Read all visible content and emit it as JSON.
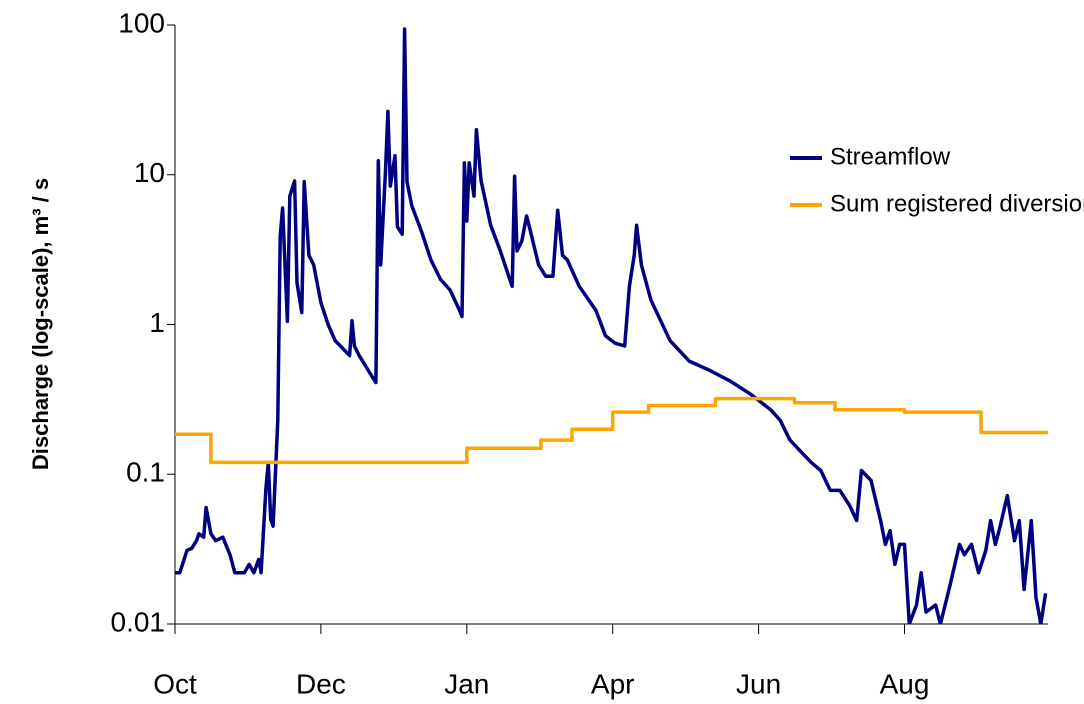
{
  "chart_data": {
    "type": "line",
    "ylabel": "Discharge (log-scale), m³ / s",
    "ylog": true,
    "ylim": [
      0.01,
      100
    ],
    "yticks": [
      0.01,
      0.1,
      1,
      10,
      100
    ],
    "xlim": [
      0,
      365
    ],
    "xticks": [
      {
        "value": 0,
        "label": "Oct"
      },
      {
        "value": 61,
        "label": "Dec"
      },
      {
        "value": 122,
        "label": "Jan"
      },
      {
        "value": 183,
        "label": "Apr"
      },
      {
        "value": 244,
        "label": "Jun"
      },
      {
        "value": 305,
        "label": "Aug"
      }
    ],
    "legend": "upper right",
    "series": [
      {
        "name": "Streamflow",
        "color": "#000080",
        "x": [
          0,
          2,
          5,
          7,
          9,
          10,
          12,
          13,
          15,
          17,
          20,
          23,
          25,
          29,
          31,
          33,
          35,
          36,
          38,
          39,
          40,
          41,
          43,
          44,
          45,
          47,
          48,
          50,
          51,
          53,
          54,
          56,
          58,
          61,
          64,
          67,
          71,
          73,
          74,
          75,
          77,
          82,
          84,
          85,
          86,
          88,
          89,
          90,
          92,
          93,
          95,
          96,
          97,
          99,
          103,
          107,
          111,
          115,
          119,
          120,
          121,
          122,
          123,
          125,
          126,
          128,
          132,
          136,
          140,
          141,
          142,
          143,
          145,
          147,
          148,
          152,
          155,
          158,
          160,
          162,
          164,
          169,
          176,
          180,
          184,
          188,
          190,
          192,
          193,
          195,
          199,
          207,
          215,
          224,
          232,
          241,
          249,
          253,
          257,
          262,
          266,
          270,
          274,
          278,
          282,
          285,
          287,
          291,
          295,
          297,
          299,
          301,
          303,
          305,
          307,
          310,
          312,
          314,
          318,
          320,
          324,
          328,
          330,
          333,
          336,
          339,
          341,
          343,
          345,
          348,
          351,
          353,
          355,
          358,
          360,
          362,
          364
        ],
        "values": [
          0.022,
          0.022,
          0.031,
          0.032,
          0.036,
          0.04,
          0.038,
          0.06,
          0.04,
          0.036,
          0.038,
          0.029,
          0.022,
          0.022,
          0.025,
          0.022,
          0.027,
          0.022,
          0.08,
          0.12,
          0.05,
          0.045,
          0.23,
          3.9,
          6,
          1.05,
          7.2,
          9.1,
          1.9,
          1.2,
          9,
          2.9,
          2.5,
          1.4,
          1.0,
          0.78,
          0.67,
          0.62,
          1.06,
          0.72,
          0.62,
          0.46,
          0.41,
          12.4,
          2.5,
          10.6,
          26.5,
          8.4,
          13.4,
          4.5,
          4,
          94,
          9,
          6.2,
          4.2,
          2.7,
          2,
          1.7,
          1.24,
          1.13,
          12,
          4.9,
          12,
          7.2,
          20,
          9.1,
          4.6,
          3.1,
          2,
          1.8,
          9.8,
          3.1,
          3.6,
          5.3,
          4.6,
          2.5,
          2.1,
          2.1,
          5.8,
          2.9,
          2.7,
          1.8,
          1.24,
          0.84,
          0.75,
          0.72,
          1.8,
          2.9,
          4.6,
          2.5,
          1.45,
          0.78,
          0.57,
          0.49,
          0.42,
          0.34,
          0.27,
          0.23,
          0.17,
          0.14,
          0.12,
          0.106,
          0.078,
          0.078,
          0.062,
          0.049,
          0.106,
          0.091,
          0.049,
          0.034,
          0.042,
          0.025,
          0.034,
          0.034,
          0.01,
          0.0134,
          0.022,
          0.012,
          0.0134,
          0.01,
          0.018,
          0.034,
          0.029,
          0.034,
          0.022,
          0.031,
          0.049,
          0.034,
          0.045,
          0.072,
          0.036,
          0.049,
          0.017,
          0.049,
          0.015,
          0.01,
          0.016
        ]
      },
      {
        "name": "Sum registered diversions",
        "color": "#ffa500",
        "x": [
          0,
          15,
          15,
          122,
          122,
          153,
          153,
          166,
          166,
          183,
          183,
          198,
          198,
          226,
          226,
          259,
          259,
          276,
          276,
          305,
          305,
          337,
          337,
          365
        ],
        "values": [
          0.185,
          0.185,
          0.12,
          0.12,
          0.149,
          0.149,
          0.169,
          0.169,
          0.2,
          0.2,
          0.26,
          0.26,
          0.288,
          0.288,
          0.32,
          0.32,
          0.3,
          0.3,
          0.27,
          0.27,
          0.26,
          0.26,
          0.19,
          0.19
        ]
      }
    ]
  }
}
